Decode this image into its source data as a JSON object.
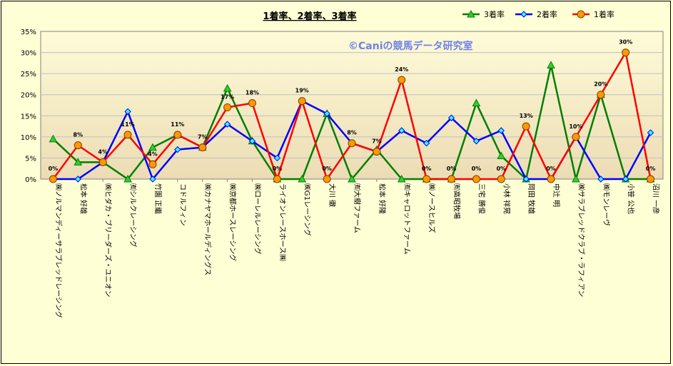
{
  "chart_data": {
    "type": "line",
    "title": "1着率、2着率、3着率",
    "watermark": "©Caniの競馬データ研究室",
    "ylim": [
      0,
      35
    ],
    "yticks": [
      "0%",
      "5%",
      "10%",
      "15%",
      "20%",
      "25%",
      "30%",
      "35%"
    ],
    "ytick_values": [
      0,
      5,
      10,
      15,
      20,
      25,
      30,
      35
    ],
    "grid": "horizontal",
    "legend_position": "top-right",
    "categories": [
      "㈱ノルマンディーサラブレッドレーシング",
      "松本 好雄",
      "㈱ヒダカ・ブリーダーズ・ユニオン",
      "㈲シルクレーシング",
      "竹園 正繼",
      "コドルフィン",
      "㈱カナヤマホールディングス",
      "㈱京都ホースレーシング",
      "㈱ローレルレーシング",
      "ライオンレースホース㈱",
      "㈱G1レーシング",
      "大川 徹",
      "㈲大樹ファーム",
      "松本 好隆",
      "㈲キャロットファーム",
      "㈱ノースヒルズ",
      "㈲高昭牧場",
      "三宅 勝俊",
      "小林 祥晃",
      "岡田 牧雄",
      "中辻 明",
      "㈱サラブレッドクラブ・ラフィアン",
      "㈱モンレーヴ",
      "小笹 公也",
      "沼川 一彦"
    ],
    "series": [
      {
        "name": "3着率",
        "color": "#007f00",
        "marker": "triangle",
        "fill": "#33cc33",
        "values": [
          9.5,
          4,
          4,
          0,
          7.5,
          10.5,
          7.5,
          21.5,
          9,
          0,
          0,
          15.5,
          0,
          7,
          0,
          0,
          0,
          18,
          5.5,
          0,
          27,
          0,
          20,
          0,
          0
        ]
      },
      {
        "name": "2着率",
        "color": "#0000ff",
        "marker": "diamond",
        "fill": "#33ffff",
        "values": [
          0,
          0,
          4,
          16,
          0,
          7,
          7.5,
          13,
          9,
          5,
          18.5,
          15.5,
          8.5,
          6.5,
          11.5,
          8.5,
          14.5,
          9,
          11.5,
          0,
          0,
          10,
          0,
          0,
          11
        ]
      },
      {
        "name": "1着率",
        "color": "#ff0000",
        "marker": "circle",
        "fill": "#ff9900",
        "values": [
          0,
          8,
          4,
          10.5,
          3.5,
          10.5,
          7.5,
          17,
          18,
          0,
          18.5,
          0,
          8.5,
          6.5,
          23.5,
          0,
          0,
          0,
          0,
          12.5,
          0,
          10,
          20,
          30,
          0
        ]
      }
    ],
    "data_labels": [
      "0%",
      "8%",
      "4%",
      "11%",
      "4%",
      "11%",
      "7%",
      "17%",
      "18%",
      "0%",
      "19%",
      "0%",
      "8%",
      "7%",
      "24%",
      "0%",
      "0%",
      "0%",
      "0%",
      "13%",
      "0%",
      "10%",
      "20%",
      "30%",
      "0%"
    ]
  }
}
